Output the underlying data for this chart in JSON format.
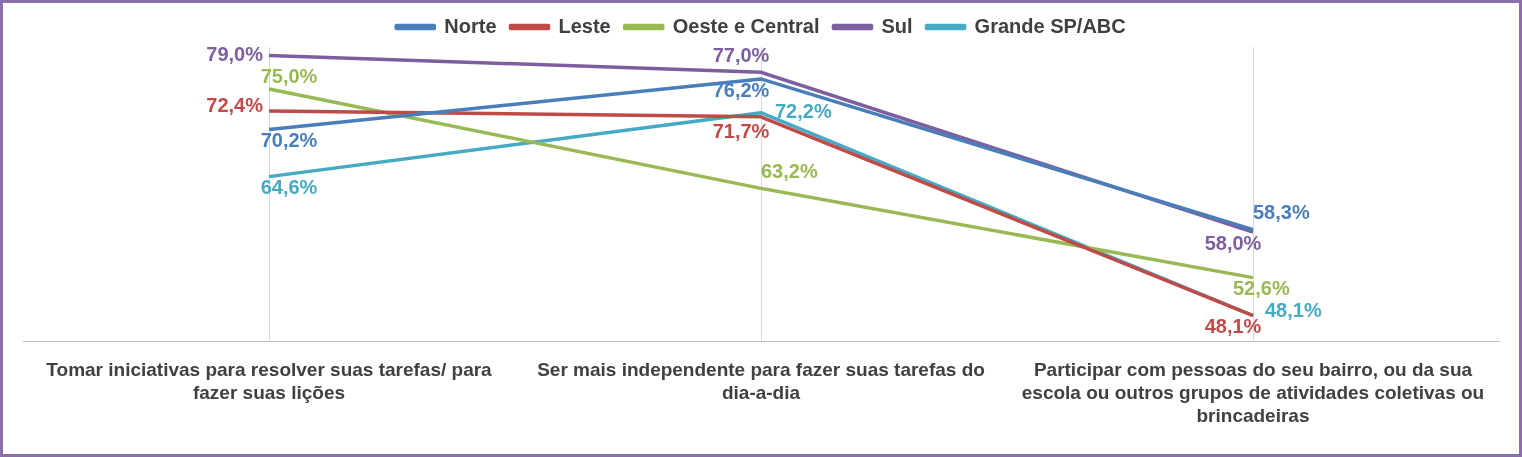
{
  "chart_data": {
    "type": "line",
    "categories": [
      "Tomar iniciativas para resolver suas tarefas/ para fazer suas lições",
      "Ser mais independente para fazer suas tarefas do dia-a-dia",
      "Participar com pessoas do seu bairro, ou da sua escola ou outros grupos de atividades coletivas ou brincadeiras"
    ],
    "series": [
      {
        "name": "Norte",
        "color": "#4a7ebb",
        "values": [
          70.2,
          76.2,
          58.3
        ],
        "value_labels": [
          "70,2%",
          "76,2%",
          "58,3%"
        ]
      },
      {
        "name": "Leste",
        "color": "#be4b48",
        "values": [
          72.4,
          71.7,
          48.1
        ],
        "value_labels": [
          "72,4%",
          "71,7%",
          "48,1%"
        ]
      },
      {
        "name": "Oeste e Central",
        "color": "#98b954",
        "values": [
          75.0,
          63.2,
          52.6
        ],
        "value_labels": [
          "75,0%",
          "63,2%",
          "52,6%"
        ]
      },
      {
        "name": "Sul",
        "color": "#7d5fa0",
        "values": [
          79.0,
          77.0,
          58.0
        ],
        "value_labels": [
          "79,0%",
          "77,0%",
          "58,0%"
        ]
      },
      {
        "name": "Grande SP/ABC",
        "color": "#46aac5",
        "values": [
          64.6,
          72.2,
          48.1
        ],
        "value_labels": [
          "64,6%",
          "72,2%",
          "48,1%"
        ]
      }
    ],
    "legend": "top",
    "grid": "x",
    "marker": "none",
    "line_style": "solid"
  }
}
